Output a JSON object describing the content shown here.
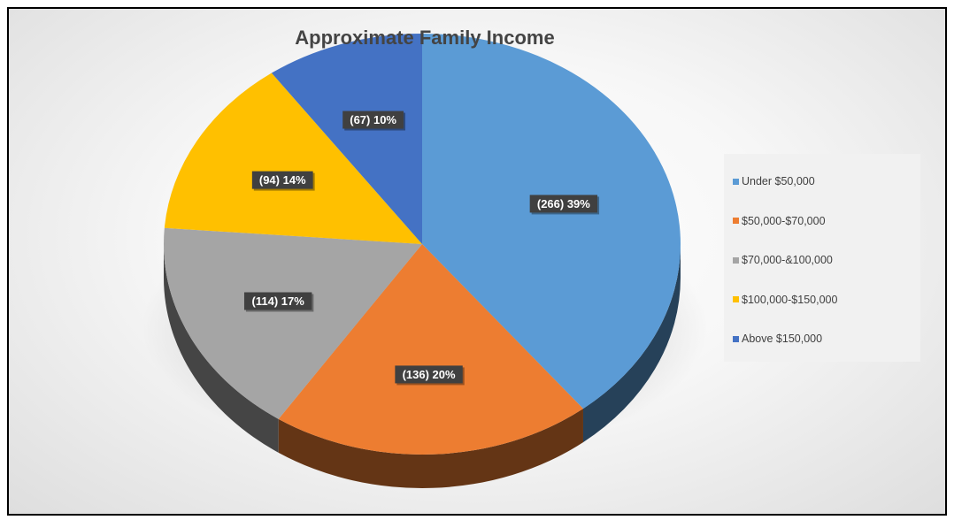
{
  "chart_data": {
    "type": "pie",
    "title": "Approximate Family Income",
    "categories": [
      "Under $50,000",
      "$50,000-$70,000",
      "$70,000-&100,000",
      "$100,000-$150,000",
      "Above $150,000"
    ],
    "values": [
      266,
      136,
      114,
      94,
      67
    ],
    "percents": [
      39,
      20,
      17,
      14,
      10
    ],
    "data_labels": [
      "(266) 39%",
      "(136) 20%",
      "(114) 17%",
      "(94) 14%",
      "(67) 10%"
    ],
    "colors": [
      "#5B9BD5",
      "#ED7D31",
      "#A5A5A5",
      "#FFC000",
      "#4472C4"
    ],
    "legend_position": "right",
    "style": "3d"
  }
}
